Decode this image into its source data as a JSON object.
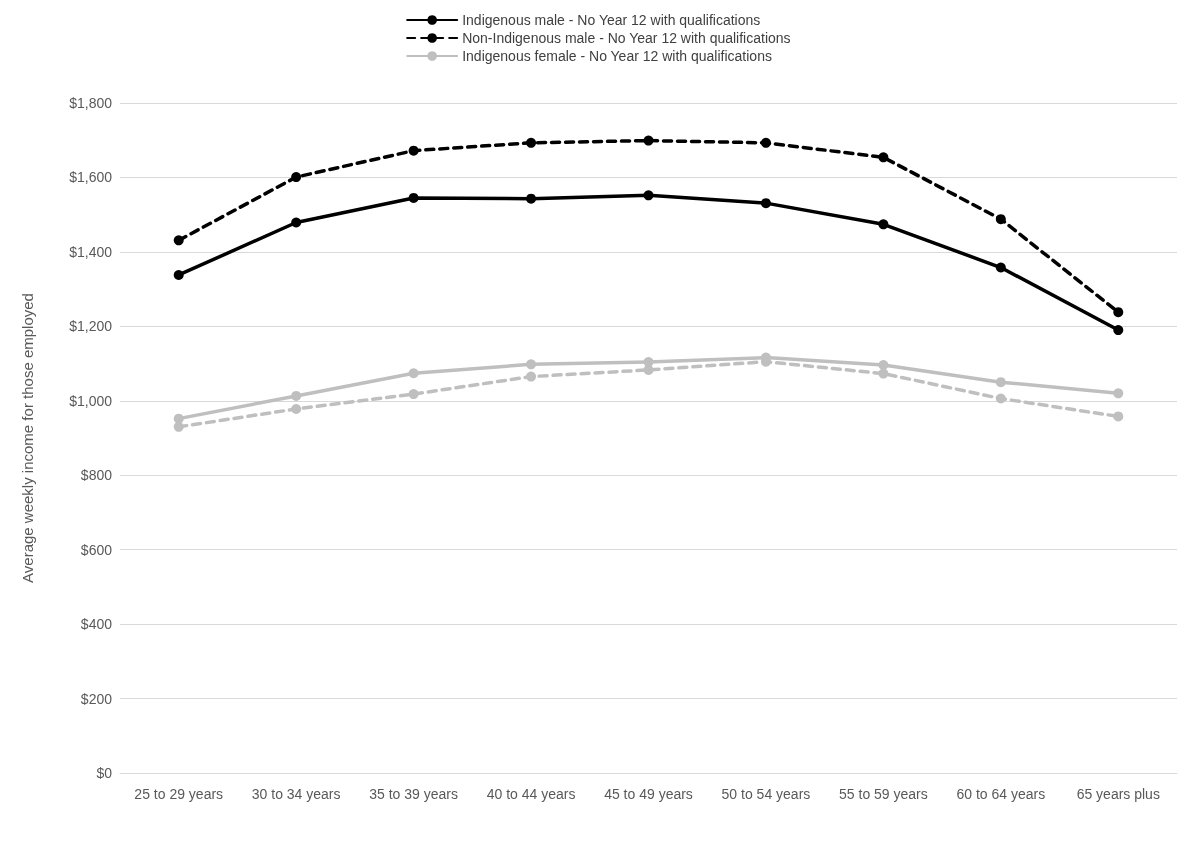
{
  "chart_data": {
    "type": "line",
    "ylabel": "Average weekly income for those employed",
    "categories": [
      "25 to 29 years",
      "30 to 34 years",
      "35 to 39 years",
      "40 to 44 years",
      "45 to 49 years",
      "50 to 54 years",
      "55 to 59 years",
      "60 to 64 years",
      "65 years plus"
    ],
    "series": [
      {
        "name": "Indigenous male - No Year 12 with qualifications",
        "color": "#000000",
        "line_style": "solid",
        "values": [
          1338,
          1479,
          1545,
          1543,
          1552,
          1531,
          1474,
          1358,
          1190
        ]
      },
      {
        "name": "Non-Indigenous male - No Year 12 with qualifications",
        "color": "#000000",
        "line_style": "dashed",
        "values": [
          1431,
          1601,
          1672,
          1693,
          1699,
          1693,
          1654,
          1488,
          1238
        ]
      },
      {
        "name": "Indigenous female - No Year 12 with qualifications",
        "color": "#bfbfbf",
        "line_style": "solid",
        "values": [
          952,
          1013,
          1074,
          1098,
          1104,
          1116,
          1096,
          1050,
          1020
        ]
      },
      {
        "color": "#bfbfbf",
        "line_style": "dashed",
        "values": [
          930,
          978,
          1018,
          1065,
          1083,
          1105,
          1073,
          1006,
          958
        ]
      }
    ],
    "ylim": [
      0,
      1800
    ],
    "yticks": [
      {
        "value": 0,
        "label": "$0"
      },
      {
        "value": 200,
        "label": "$200"
      },
      {
        "value": 400,
        "label": "$400"
      },
      {
        "value": 600,
        "label": "$600"
      },
      {
        "value": 800,
        "label": "$800"
      },
      {
        "value": 1000,
        "label": "$1,000"
      },
      {
        "value": 1200,
        "label": "$1,200"
      },
      {
        "value": 1400,
        "label": "$1,400"
      },
      {
        "value": 1600,
        "label": "$1,600"
      },
      {
        "value": 1800,
        "label": "$1,800"
      }
    ],
    "grid": "y",
    "legend": "top",
    "marker": "circle"
  }
}
